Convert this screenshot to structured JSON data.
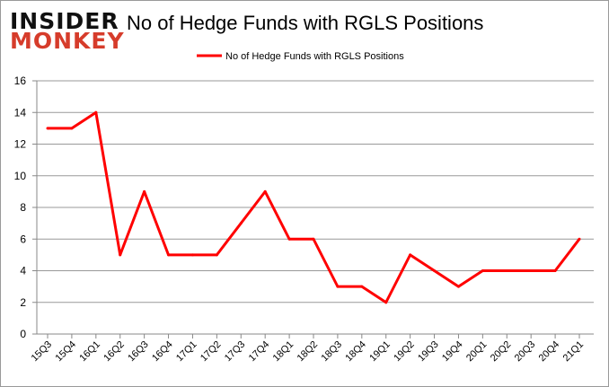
{
  "logo": {
    "line1": "INSIDER",
    "line2": "MONKEY"
  },
  "chart_data": {
    "type": "line",
    "title": "No of Hedge Funds with RGLS Positions",
    "xlabel": "",
    "ylabel": "",
    "categories": [
      "15Q3",
      "15Q4",
      "16Q1",
      "16Q2",
      "16Q3",
      "16Q4",
      "17Q1",
      "17Q2",
      "17Q3",
      "17Q4",
      "18Q1",
      "18Q2",
      "18Q3",
      "18Q4",
      "19Q1",
      "19Q2",
      "19Q3",
      "19Q4",
      "20Q1",
      "20Q2",
      "20Q3",
      "20Q4",
      "21Q1"
    ],
    "series": [
      {
        "name": "No of Hedge Funds with RGLS Positions",
        "color": "#ff0000",
        "values": [
          13,
          13,
          14,
          5,
          9,
          5,
          5,
          5,
          7,
          9,
          6,
          6,
          3,
          3,
          2,
          5,
          4,
          3,
          4,
          4,
          4,
          4,
          6
        ]
      }
    ],
    "ylim": [
      0,
      16
    ],
    "yticks": [
      0,
      2,
      4,
      6,
      8,
      10,
      12,
      14,
      16
    ],
    "grid": true,
    "legend": "top-center"
  }
}
